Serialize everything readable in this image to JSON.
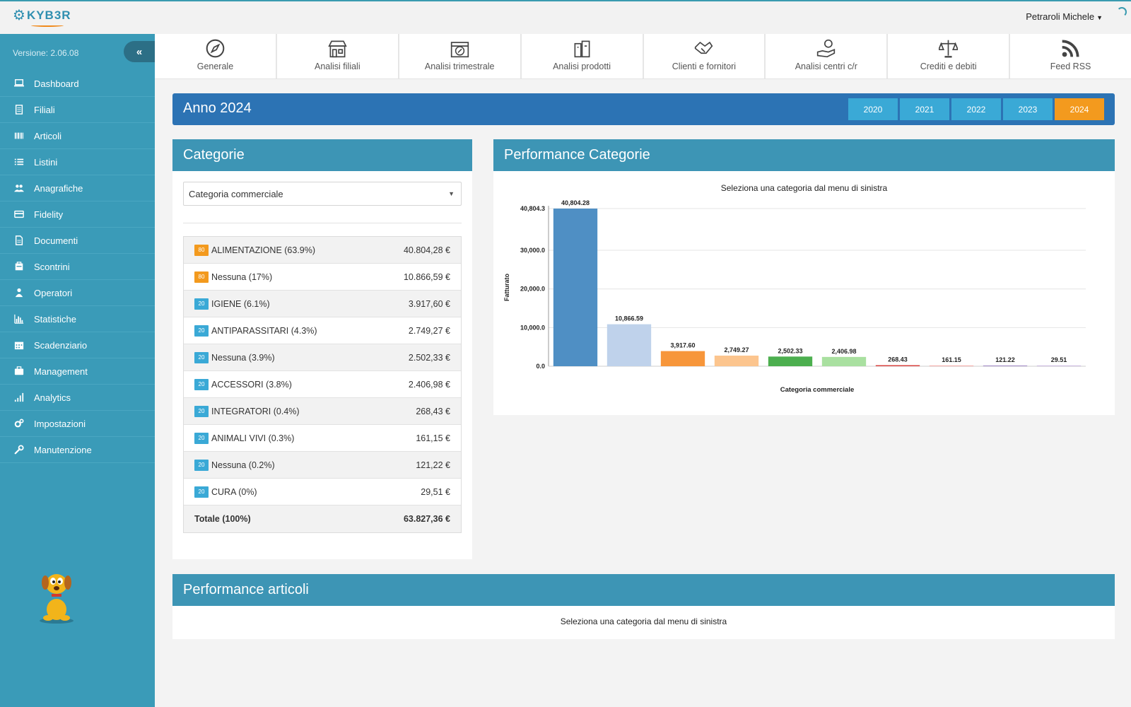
{
  "app": {
    "logo_text": "KYB3R",
    "user": "Petraroli Michele",
    "version": "Versione: 2.06.08"
  },
  "sidebar": {
    "items": [
      {
        "label": "Dashboard",
        "icon": "laptop-icon"
      },
      {
        "label": "Filiali",
        "icon": "document-icon"
      },
      {
        "label": "Articoli",
        "icon": "barcode-icon"
      },
      {
        "label": "Listini",
        "icon": "list-icon"
      },
      {
        "label": "Anagrafiche",
        "icon": "users-icon"
      },
      {
        "label": "Fidelity",
        "icon": "credit-card-icon"
      },
      {
        "label": "Documenti",
        "icon": "file-icon"
      },
      {
        "label": "Scontrini",
        "icon": "receipt-icon"
      },
      {
        "label": "Operatori",
        "icon": "user-icon"
      },
      {
        "label": "Statistiche",
        "icon": "bar-chart-icon"
      },
      {
        "label": "Scadenziario",
        "icon": "calendar-icon"
      },
      {
        "label": "Management",
        "icon": "briefcase-icon"
      },
      {
        "label": "Analytics",
        "icon": "signal-icon"
      },
      {
        "label": "Impostazioni",
        "icon": "cogs-icon"
      },
      {
        "label": "Manutenzione",
        "icon": "wrench-icon"
      }
    ]
  },
  "tabs": [
    {
      "label": "Generale",
      "icon": "compass-icon"
    },
    {
      "label": "Analisi filiali",
      "icon": "store-icon"
    },
    {
      "label": "Analisi trimestrale",
      "icon": "calendar-percent-icon"
    },
    {
      "label": "Analisi prodotti",
      "icon": "products-icon"
    },
    {
      "label": "Clienti e fornitori",
      "icon": "handshake-icon"
    },
    {
      "label": "Analisi centri c/r",
      "icon": "hand-coins-icon"
    },
    {
      "label": "Crediti e debiti",
      "icon": "balance-scale-icon"
    },
    {
      "label": "Feed RSS",
      "icon": "rss-icon"
    }
  ],
  "year_bar": {
    "title": "Anno 2024",
    "years": [
      "2020",
      "2021",
      "2022",
      "2023",
      "2024"
    ],
    "active_year": "2024"
  },
  "categorie": {
    "title": "Categorie",
    "select_value": "Categoria commerciale",
    "rows": [
      {
        "badge": "80",
        "badge_color": "#f39a1e",
        "name": "ALIMENTAZIONE (63.9%)",
        "value": "40.804,28 €"
      },
      {
        "badge": "80",
        "badge_color": "#f39a1e",
        "name": "Nessuna (17%)",
        "value": "10.866,59 €"
      },
      {
        "badge": "20",
        "badge_color": "#3aa9d6",
        "name": "IGIENE (6.1%)",
        "value": "3.917,60 €"
      },
      {
        "badge": "20",
        "badge_color": "#3aa9d6",
        "name": "ANTIPARASSITARI (4.3%)",
        "value": "2.749,27 €"
      },
      {
        "badge": "20",
        "badge_color": "#3aa9d6",
        "name": "Nessuna (3.9%)",
        "value": "2.502,33 €"
      },
      {
        "badge": "20",
        "badge_color": "#3aa9d6",
        "name": "ACCESSORI (3.8%)",
        "value": "2.406,98 €"
      },
      {
        "badge": "20",
        "badge_color": "#3aa9d6",
        "name": "INTEGRATORI (0.4%)",
        "value": "268,43 €"
      },
      {
        "badge": "20",
        "badge_color": "#3aa9d6",
        "name": "ANIMALI VIVI (0.3%)",
        "value": "161,15 €"
      },
      {
        "badge": "20",
        "badge_color": "#3aa9d6",
        "name": "Nessuna (0.2%)",
        "value": "121,22 €"
      },
      {
        "badge": "20",
        "badge_color": "#3aa9d6",
        "name": "CURA (0%)",
        "value": "29,51 €"
      }
    ],
    "total_label": "Totale (100%)",
    "total_value": "63.827,36 €"
  },
  "performance_categorie": {
    "title": "Performance Categorie",
    "subtitle": "Seleziona una categoria dal menu di sinistra"
  },
  "chart_data": {
    "type": "bar",
    "title": "",
    "xlabel": "Categoria commerciale",
    "ylabel": "Fatturato",
    "ylim": [
      0,
      40804.3
    ],
    "yticks": [
      "0.0",
      "10,000.0",
      "20,000.0",
      "30,000.0",
      "40,804.3"
    ],
    "ytick_values": [
      0,
      10000,
      20000,
      30000,
      40804.3
    ],
    "values": [
      40804.28,
      10866.59,
      3917.6,
      2749.27,
      2502.33,
      2406.98,
      268.43,
      161.15,
      121.22,
      29.51
    ],
    "value_labels": [
      "40,804.28",
      "10,866.59",
      "3,917.60",
      "2,749.27",
      "2,502.33",
      "2,406.98",
      "268.43",
      "161.15",
      "121.22",
      "29.51"
    ],
    "colors": [
      "#4f8fc4",
      "#bfd2eb",
      "#f7963a",
      "#fcc58e",
      "#4caf4f",
      "#a9e0a0",
      "#d9413d",
      "#f4a9a4",
      "#9f86c4",
      "#c9b6df"
    ],
    "grid": true,
    "legend": "none"
  },
  "performance_articoli": {
    "title": "Performance articoli",
    "message": "Seleziona una categoria dal menu di sinistra"
  }
}
